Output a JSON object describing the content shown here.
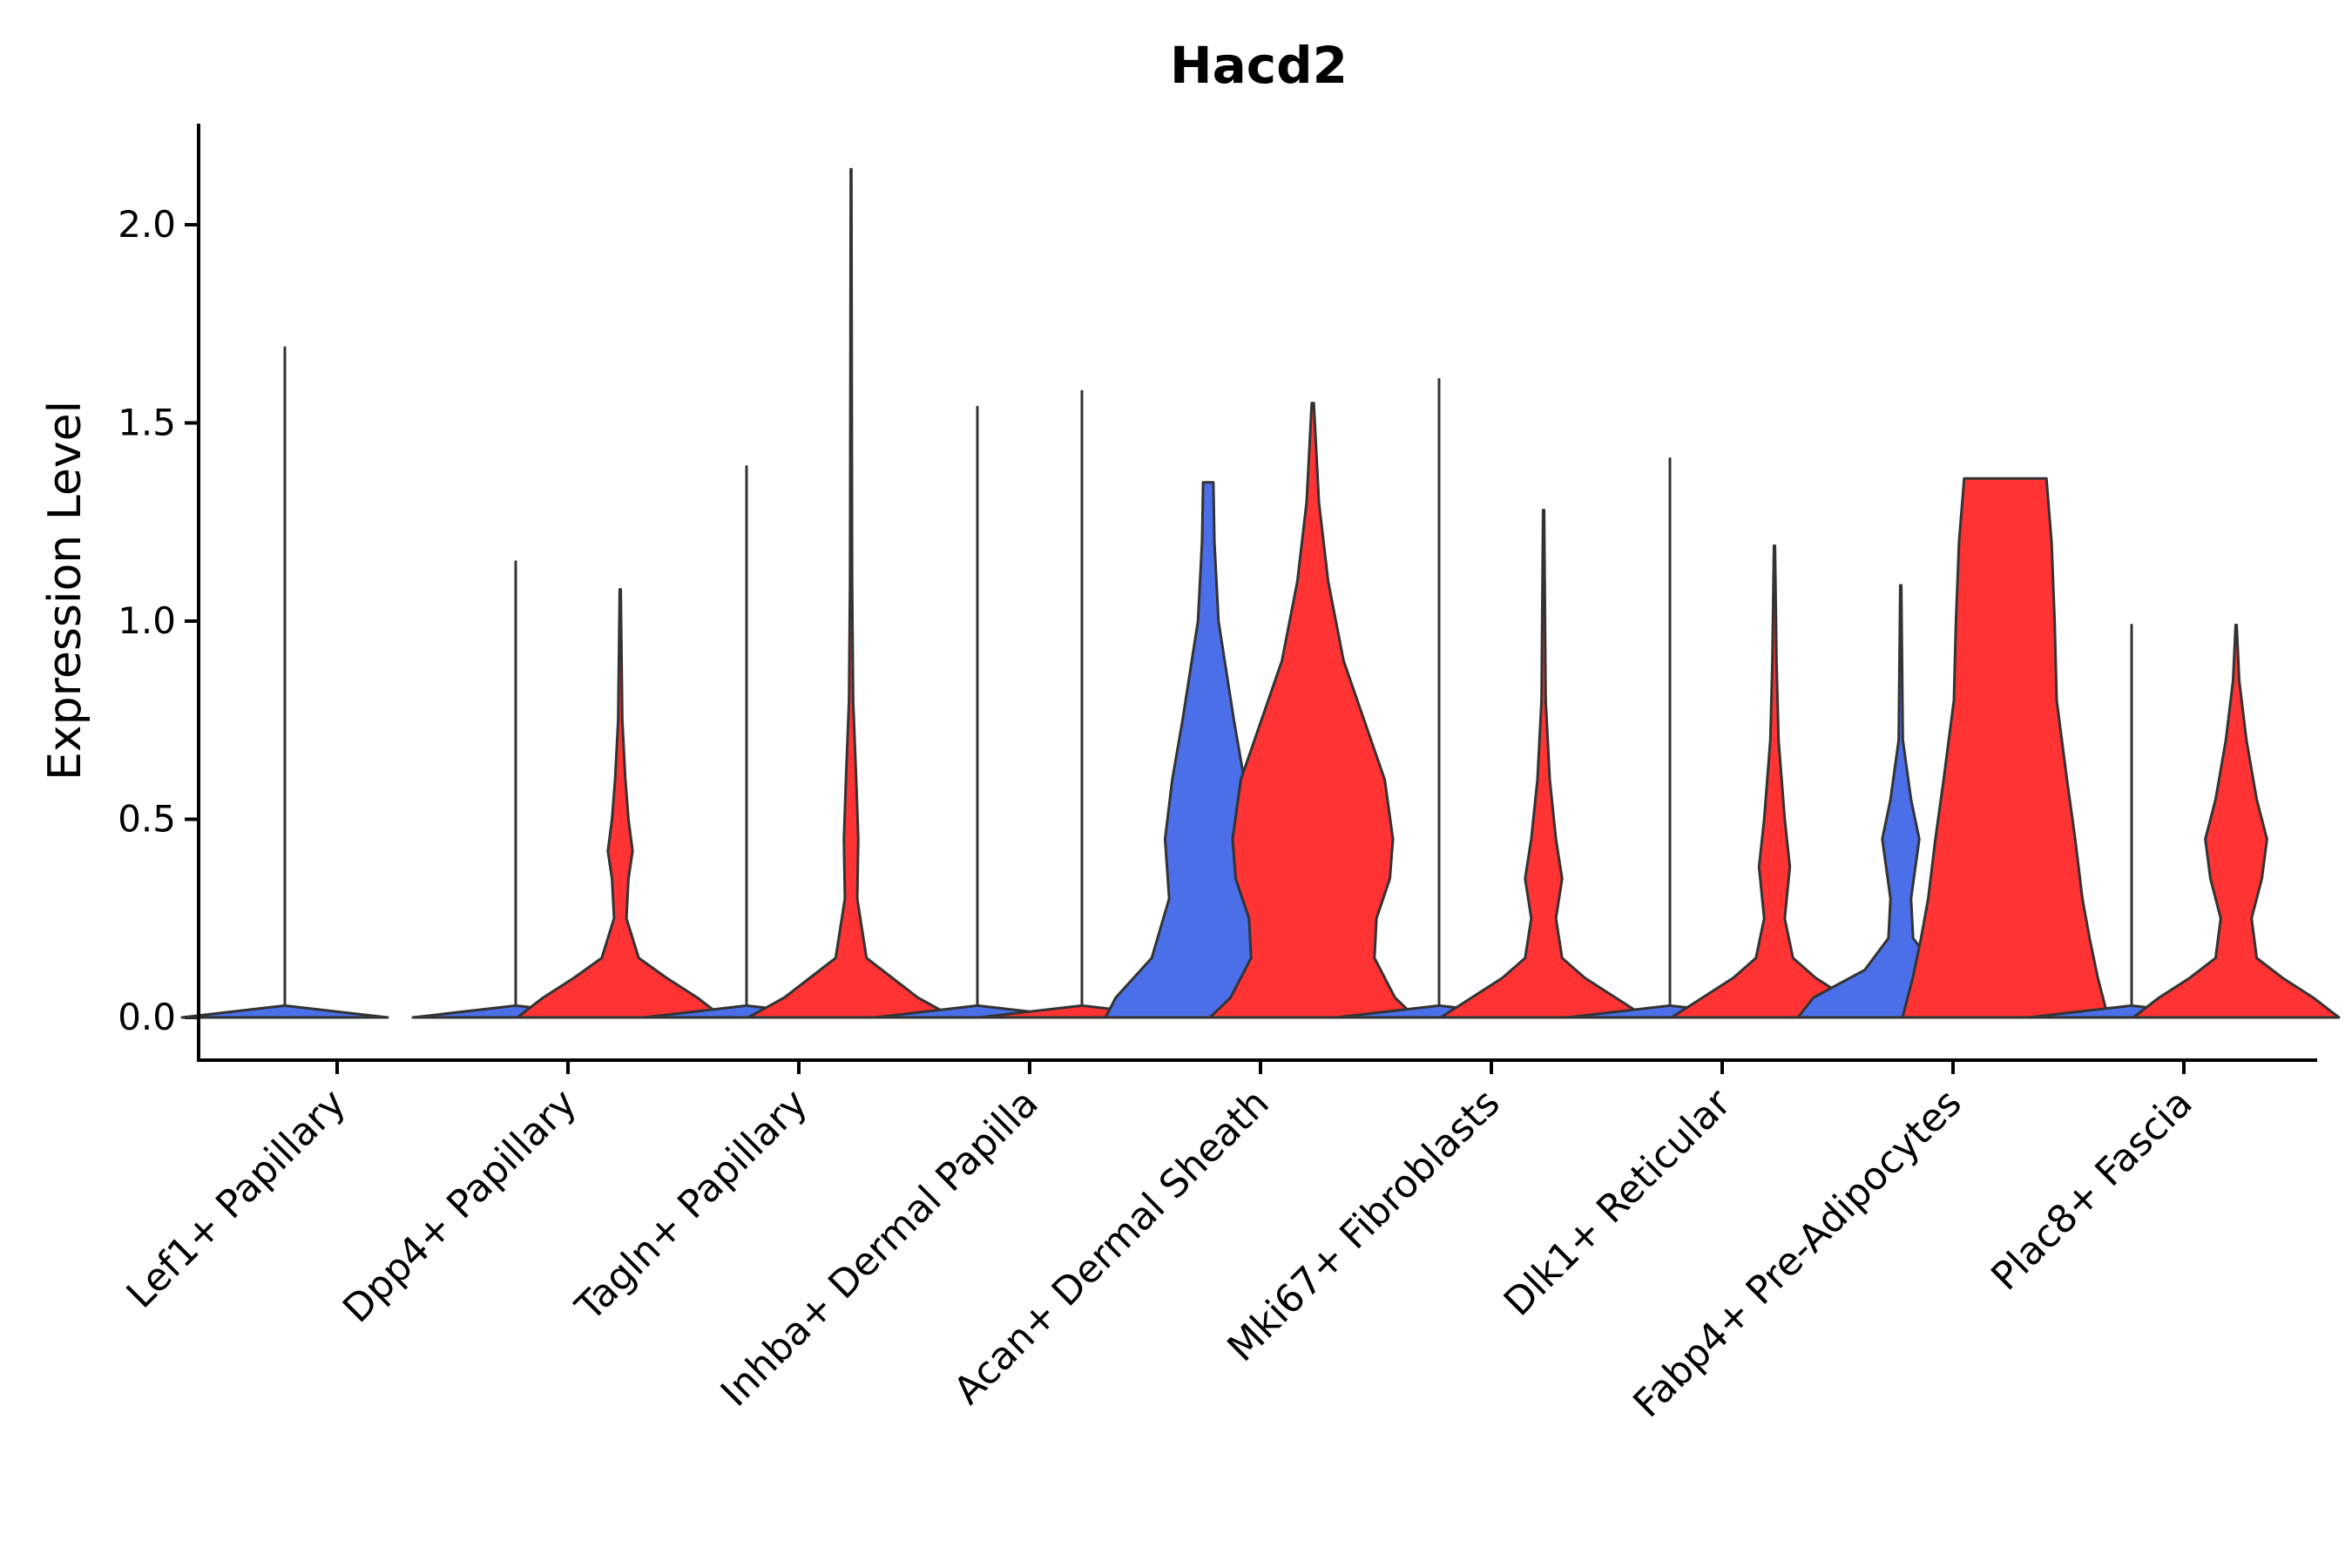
{
  "chart_data": {
    "type": "violin",
    "title": "Hacd2",
    "xlabel": "",
    "ylabel": "Expression Level",
    "ylim": [
      -0.11,
      2.25
    ],
    "yticks": [
      0.0,
      0.5,
      1.0,
      1.5,
      2.0
    ],
    "ytick_labels": [
      "0.0",
      "0.5",
      "1.0",
      "1.5",
      "2.0"
    ],
    "legend": "none",
    "colors": {
      "group_a": "#4A6FE8",
      "group_b": "#FF3333",
      "outline": "#333333"
    },
    "categories": [
      "Lef1+ Papillary",
      "Dpp4+ Papillary",
      "Tagln+ Papillary",
      "Inhba+ Dermal Papilla",
      "Acan+ Dermal Sheath",
      "Mki67+ Fibroblasts",
      "Dlk1+ Reticular",
      "Fabp4+ Pre-Adipocytes",
      "Plac8+ Fascia"
    ],
    "series": [
      {
        "name": "group_a",
        "color": "#4A6FE8",
        "values": [
          {
            "max": 1.69,
            "density": [
              [
                0,
                1.0
              ],
              [
                0.03,
                0
              ],
              [
                1.69,
                0
              ]
            ]
          },
          {
            "max": 1.15,
            "density": [
              [
                0,
                1.0
              ],
              [
                0.03,
                0
              ],
              [
                1.15,
                0
              ]
            ]
          },
          {
            "max": 1.39,
            "density": [
              [
                0,
                1.0
              ],
              [
                0.03,
                0
              ],
              [
                1.39,
                0
              ]
            ]
          },
          {
            "max": 1.54,
            "density": [
              [
                0,
                1.0
              ],
              [
                0.03,
                0
              ],
              [
                1.54,
                0
              ]
            ]
          },
          {
            "max": 1.35,
            "density": [
              [
                0,
                1.0
              ],
              [
                0.05,
                0.9
              ],
              [
                0.15,
                0.55
              ],
              [
                0.3,
                0.38
              ],
              [
                0.45,
                0.42
              ],
              [
                0.6,
                0.35
              ],
              [
                0.75,
                0.25
              ],
              [
                1.0,
                0.1
              ],
              [
                1.2,
                0.06
              ],
              [
                1.35,
                0.05
              ]
            ]
          },
          {
            "max": 1.61,
            "density": [
              [
                0,
                1.0
              ],
              [
                0.03,
                0
              ],
              [
                1.61,
                0
              ]
            ]
          },
          {
            "max": 1.41,
            "density": [
              [
                0,
                1.0
              ],
              [
                0.03,
                0
              ],
              [
                1.41,
                0
              ]
            ]
          },
          {
            "max": 1.09,
            "density": [
              [
                0,
                1.0
              ],
              [
                0.05,
                0.85
              ],
              [
                0.12,
                0.35
              ],
              [
                0.2,
                0.12
              ],
              [
                0.3,
                0.1
              ],
              [
                0.45,
                0.18
              ],
              [
                0.55,
                0.1
              ],
              [
                0.7,
                0.02
              ],
              [
                1.09,
                0.005
              ]
            ]
          },
          {
            "max": 0.99,
            "density": [
              [
                0,
                1.0
              ],
              [
                0.03,
                0
              ],
              [
                0.99,
                0
              ]
            ]
          }
        ]
      },
      {
        "name": "group_b",
        "color": "#FF3333",
        "values": [
          {
            "max": 0.0,
            "density": []
          },
          {
            "max": 1.08,
            "density": [
              [
                0,
                1.0
              ],
              [
                0.05,
                0.75
              ],
              [
                0.1,
                0.45
              ],
              [
                0.15,
                0.18
              ],
              [
                0.25,
                0.06
              ],
              [
                0.35,
                0.08
              ],
              [
                0.42,
                0.12
              ],
              [
                0.5,
                0.08
              ],
              [
                0.6,
                0.05
              ],
              [
                0.75,
                0.02
              ],
              [
                1.08,
                0.005
              ]
            ]
          },
          {
            "max": 2.14,
            "density": [
              [
                0,
                1.0
              ],
              [
                0.05,
                0.65
              ],
              [
                0.1,
                0.4
              ],
              [
                0.15,
                0.15
              ],
              [
                0.3,
                0.06
              ],
              [
                0.45,
                0.07
              ],
              [
                0.6,
                0.05
              ],
              [
                0.8,
                0.02
              ],
              [
                1.1,
                0.01
              ],
              [
                2.14,
                0.003
              ]
            ]
          },
          {
            "max": 1.58,
            "density": [
              [
                0,
                1.0
              ],
              [
                0.03,
                0
              ],
              [
                1.58,
                0
              ]
            ]
          },
          {
            "max": 1.55,
            "density": [
              [
                0,
                1.0
              ],
              [
                0.05,
                0.8
              ],
              [
                0.15,
                0.6
              ],
              [
                0.25,
                0.62
              ],
              [
                0.35,
                0.75
              ],
              [
                0.45,
                0.78
              ],
              [
                0.6,
                0.7
              ],
              [
                0.75,
                0.5
              ],
              [
                0.9,
                0.3
              ],
              [
                1.1,
                0.15
              ],
              [
                1.3,
                0.06
              ],
              [
                1.55,
                0.01
              ]
            ]
          },
          {
            "max": 1.28,
            "density": [
              [
                0,
                1.0
              ],
              [
                0.05,
                0.7
              ],
              [
                0.1,
                0.4
              ],
              [
                0.15,
                0.18
              ],
              [
                0.25,
                0.12
              ],
              [
                0.35,
                0.18
              ],
              [
                0.45,
                0.12
              ],
              [
                0.6,
                0.06
              ],
              [
                0.8,
                0.02
              ],
              [
                1.28,
                0.005
              ]
            ]
          },
          {
            "max": 1.19,
            "density": [
              [
                0,
                1.0
              ],
              [
                0.05,
                0.7
              ],
              [
                0.1,
                0.4
              ],
              [
                0.15,
                0.18
              ],
              [
                0.25,
                0.1
              ],
              [
                0.38,
                0.15
              ],
              [
                0.5,
                0.1
              ],
              [
                0.7,
                0.04
              ],
              [
                0.9,
                0.02
              ],
              [
                1.19,
                0.005
              ]
            ]
          },
          {
            "max": 1.36,
            "density": [
              [
                0,
                1.0
              ],
              [
                0.1,
                0.9
              ],
              [
                0.2,
                0.82
              ],
              [
                0.3,
                0.75
              ],
              [
                0.45,
                0.68
              ],
              [
                0.6,
                0.6
              ],
              [
                0.8,
                0.5
              ],
              [
                1.0,
                0.48
              ],
              [
                1.2,
                0.45
              ],
              [
                1.36,
                0.4
              ]
            ]
          },
          {
            "max": 0.99,
            "density": [
              [
                0,
                1.0
              ],
              [
                0.05,
                0.75
              ],
              [
                0.1,
                0.45
              ],
              [
                0.15,
                0.2
              ],
              [
                0.25,
                0.15
              ],
              [
                0.35,
                0.25
              ],
              [
                0.45,
                0.3
              ],
              [
                0.55,
                0.2
              ],
              [
                0.7,
                0.1
              ],
              [
                0.85,
                0.03
              ],
              [
                0.99,
                0.005
              ]
            ]
          }
        ]
      }
    ]
  }
}
